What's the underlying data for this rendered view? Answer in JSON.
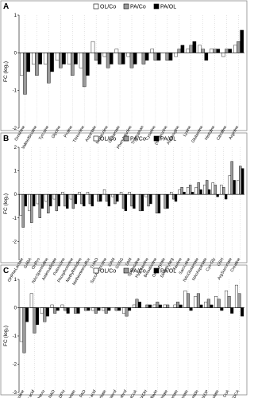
{
  "chart_data": [
    {
      "type": "bar",
      "panel": "A",
      "y_label": "FC (log₂)",
      "categories": [
        "Ornithine",
        "Valine/Betaine",
        "Tyrosine",
        "Glycine",
        "Proline",
        "Threonine",
        "Aspartate",
        "Methionine",
        "Glutamate",
        "Phenylalanine",
        "Tryptophan",
        "Cysteine",
        "(Iso)leucine",
        "Asparagine",
        "Lysine",
        "Glutamine",
        "Histidine",
        "Citrulline",
        "Arginine"
      ],
      "series": [
        {
          "name": "OL/Co",
          "color": "#ffffff",
          "values": [
            -0.6,
            -0.3,
            -0.3,
            -0.2,
            -0.3,
            -0.4,
            0.3,
            -0.1,
            0.1,
            -0.1,
            0,
            0.1,
            0,
            -0.1,
            0.1,
            0.2,
            0.1,
            -0.1,
            0.2
          ]
        },
        {
          "name": "PA/Co",
          "color": "#9a9a9a",
          "values": [
            -1.1,
            -0.6,
            -0.8,
            -0.4,
            -0.6,
            -0.9,
            -0.2,
            -0.4,
            -0.3,
            -0.4,
            -0.3,
            -0.2,
            -0.2,
            0.1,
            0.2,
            0.1,
            0.1,
            0.1,
            0.3
          ]
        },
        {
          "name": "PA/OL",
          "color": "#000000",
          "values": [
            -0.5,
            -0.3,
            -0.5,
            -0.3,
            -0.3,
            -0.6,
            -0.3,
            -0.3,
            -0.3,
            -0.3,
            -0.2,
            -0.2,
            -0.2,
            0.2,
            0.3,
            -0.2,
            0.1,
            0.1,
            0.6
          ]
        }
      ],
      "ylim": [
        -2,
        1
      ],
      "yticks": [
        -2,
        -1,
        0,
        1
      ]
    },
    {
      "type": "bar",
      "panel": "B",
      "y_label": "FC (log₂)",
      "categories": [
        "OHPheLactate",
        "GABA",
        "OHPro",
        "NAcSpermidine",
        "Aminoadipate",
        "Putrescine",
        "Phosphoserine",
        "Methylhistidine",
        "Methioninesulfox",
        "TMAO",
        "SuccAdenosine",
        "GAM",
        "GSSG",
        "SAM",
        "Spermidine",
        "Hypotaurine",
        "Betaalanine",
        "OHButyrate",
        "DiMethylarg",
        "Taurine",
        "Sarcosine",
        "NAcGlutamate",
        "NAcAspartate",
        "Cys-Gly",
        "GSH",
        "ArgSuccinate",
        "Creatine"
      ],
      "series": [
        {
          "name": "OL/Co",
          "color": "#ffffff",
          "values": [
            -0.9,
            -0.7,
            -0.4,
            -0.3,
            -0.2,
            0.1,
            -0.2,
            0.1,
            0.1,
            0,
            0.2,
            -0.1,
            0.1,
            0.1,
            0,
            -0.1,
            0,
            0,
            0.1,
            0.2,
            0.3,
            0.3,
            0.4,
            0.5,
            0.4,
            0.8,
            0.6
          ]
        },
        {
          "name": "PA/Co",
          "color": "#9a9a9a",
          "values": [
            -1.4,
            -1.2,
            -1.0,
            -0.8,
            -0.7,
            -0.5,
            -0.6,
            -0.4,
            -0.4,
            -0.3,
            -0.3,
            -0.4,
            -0.6,
            -0.5,
            -0.7,
            -0.5,
            -0.8,
            -0.6,
            -0.2,
            0.3,
            0.4,
            0.5,
            0.6,
            0.4,
            0.3,
            1.4,
            1.2
          ]
        },
        {
          "name": "PA/OL",
          "color": "#000000",
          "values": [
            -0.5,
            -0.5,
            -0.6,
            -0.5,
            -0.5,
            -0.6,
            -0.4,
            -0.5,
            -0.5,
            -0.3,
            -0.5,
            -0.3,
            -0.7,
            -0.6,
            -0.7,
            -0.4,
            -0.8,
            -0.6,
            -0.3,
            0.1,
            0.1,
            0.2,
            0.2,
            -0.1,
            -0.2,
            0.6,
            1.1
          ]
        }
      ],
      "ylim": [
        -2.8,
        2
      ],
      "yticks": [
        -2,
        -1,
        0,
        1,
        2
      ]
    },
    {
      "type": "bar",
      "panel": "C",
      "y_label": "FC (log₂)",
      "categories": [
        "DMProline",
        "Cholic acid",
        "GcHexu",
        "NAD",
        "NADPH",
        "Thionate",
        "FAD",
        "Benzoic acid",
        "Ascorbate",
        "Cholesterol",
        "Erythrol",
        "AcetylCoA",
        "NADH",
        "Riboflavin",
        "Shikimate",
        "PDHMalonate",
        "Pantothenate",
        "Niacinamide",
        "NADP",
        "Taurocholate",
        "CoA",
        "TDCA"
      ],
      "series": [
        {
          "name": "OL/Co",
          "color": "#ffffff",
          "values": [
            -1.2,
            0.5,
            -0.2,
            0.1,
            0.1,
            0,
            0,
            -0.1,
            -0.1,
            0,
            -0.2,
            0.1,
            0,
            0.1,
            0.1,
            0.1,
            0.6,
            0.4,
            0.2,
            0.4,
            0.6,
            0.8
          ]
        },
        {
          "name": "PA/Co",
          "color": "#9a9a9a",
          "values": [
            -1.6,
            -0.9,
            -0.5,
            -0.2,
            -0.1,
            -0.2,
            -0.1,
            -0.2,
            -0.2,
            -0.1,
            -0.3,
            0.3,
            0.1,
            0.2,
            0.1,
            0.2,
            0.5,
            0.5,
            0.3,
            0.3,
            0.4,
            0.5
          ]
        },
        {
          "name": "PA/OL",
          "color": "#000000",
          "values": [
            -0.5,
            -0.6,
            -0.3,
            -0.1,
            -0.2,
            -0.2,
            -0.1,
            -0.1,
            -0.1,
            -0.1,
            -0.1,
            0.2,
            0.1,
            0.1,
            0,
            0.1,
            -0.1,
            0.1,
            0.1,
            -0.1,
            -0.2,
            -0.3
          ]
        }
      ],
      "ylim": [
        -3,
        1
      ],
      "yticks": [
        -3,
        -2,
        -1,
        0,
        1
      ]
    }
  ]
}
